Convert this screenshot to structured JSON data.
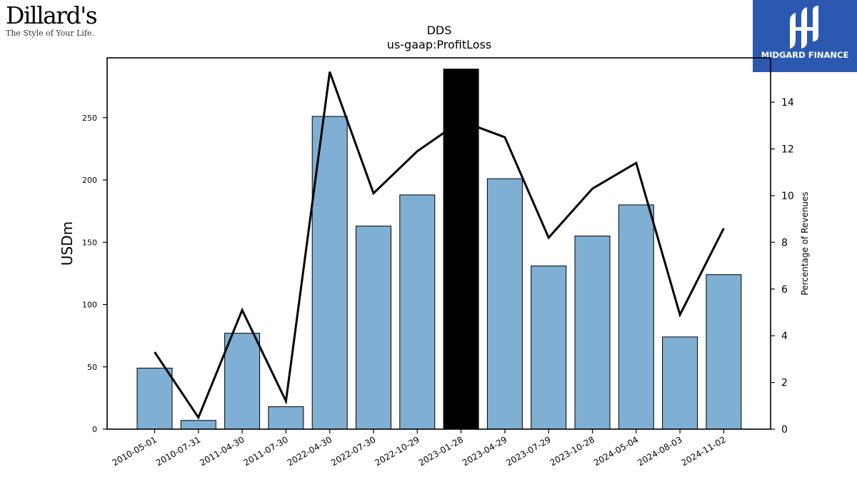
{
  "brand_left": {
    "name": "Dillard's",
    "tagline": "The Style of Your Life."
  },
  "brand_right": {
    "name": "MIDGARD FINANCE",
    "color": "#2b59b0"
  },
  "colors": {
    "bar": "#7fafd3",
    "highlight_bar": "#000000",
    "line": "#000000"
  },
  "chart_data": {
    "type": "bar",
    "title": "DDS",
    "subtitle": "us-gaap:ProfitLoss",
    "ylabel": "USDm",
    "y2label": "Percentage of Revenues",
    "categories": [
      "2010-05-01",
      "2010-07-31",
      "2011-04-30",
      "2011-07-30",
      "2022-04-30",
      "2022-07-30",
      "2022-10-29",
      "2023-01-28",
      "2023-04-29",
      "2023-07-29",
      "2023-10-28",
      "2024-05-04",
      "2024-08-03",
      "2024-11-02"
    ],
    "series": [
      {
        "values": [
          49,
          7,
          77,
          18,
          251,
          163,
          188,
          289,
          201,
          131,
          155,
          180,
          74,
          124
        ]
      },
      {
        "type": "line",
        "axis": "right",
        "values": [
          3.3,
          0.5,
          5.1,
          1.2,
          15.3,
          10.1,
          11.9,
          13.2,
          12.5,
          8.2,
          10.3,
          11.4,
          4.9,
          8.6
        ]
      }
    ],
    "highlight_index": 7,
    "ylim": [
      0,
      298
    ],
    "y2lim": [
      0,
      15.9
    ],
    "yticks": [
      0,
      50,
      100,
      150,
      200,
      250
    ],
    "y2ticks": [
      0,
      2,
      4,
      6,
      8,
      10,
      12,
      14
    ],
    "grid": false,
    "legend": "none"
  }
}
